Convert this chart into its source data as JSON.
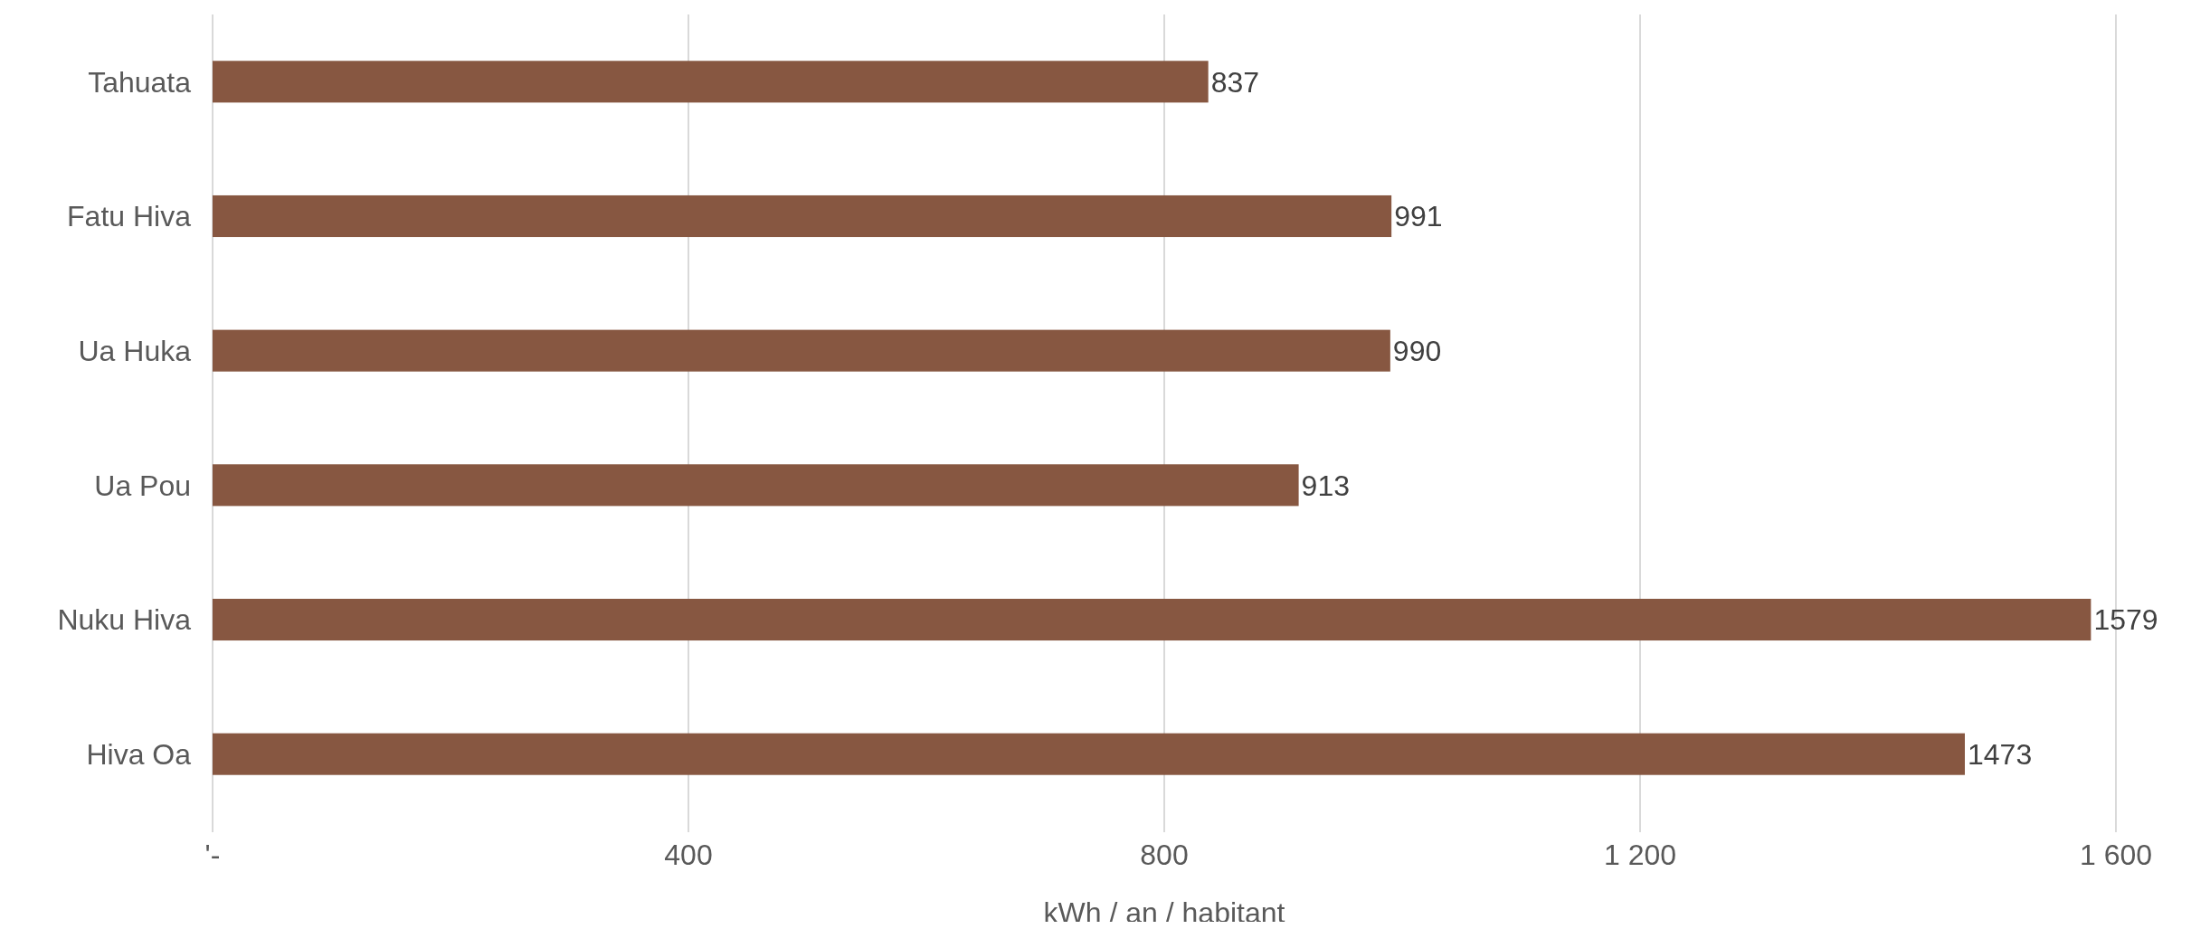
{
  "chart_data": {
    "type": "bar",
    "orientation": "horizontal",
    "xlabel": "kWh / an / habitant",
    "categories": [
      "Tahuata",
      "Fatu Hiva",
      "Ua Huka",
      "Ua Pou",
      "Nuku Hiva",
      "Hiva Oa"
    ],
    "values": [
      837,
      991,
      990,
      913,
      1579,
      1473
    ],
    "color": "#875741",
    "xlim": [
      0,
      1600
    ],
    "xticks": [
      {
        "value": 0,
        "label": "'-"
      },
      400,
      800,
      {
        "value": 1200,
        "label": "1 200"
      },
      {
        "value": 1600,
        "label": "1 600"
      }
    ],
    "grid": "x",
    "data_labels": true
  }
}
